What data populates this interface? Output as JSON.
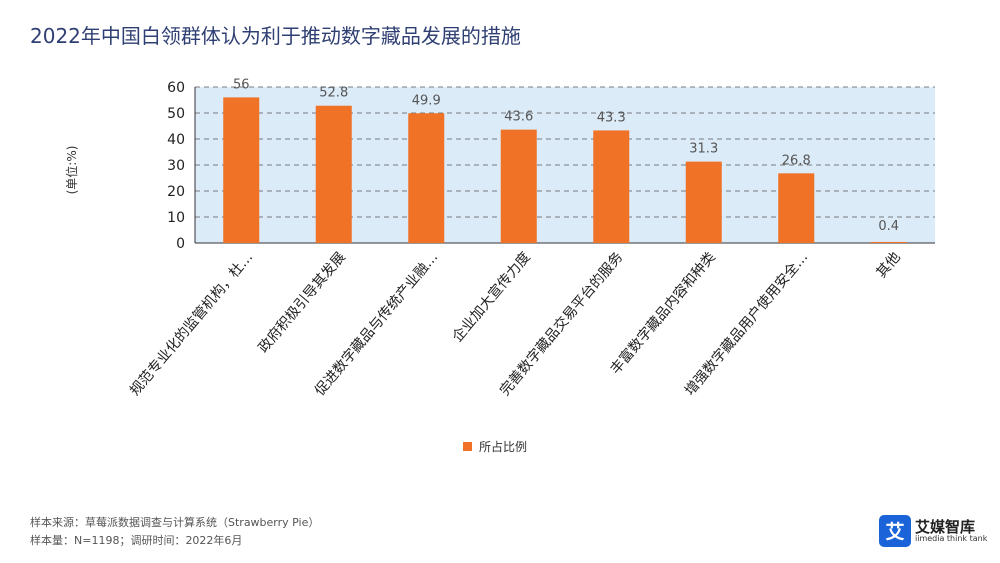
{
  "title": "2022年中国白领群体认为利于推动数字藏品发展的措施",
  "footer": {
    "source": "样本来源：草莓派数据调查与计算系统（Strawberry Pie）",
    "sample": "样本量：N=1198；调研时间：2022年6月"
  },
  "logo": {
    "glyph": "艾",
    "name": "艾媒智库",
    "sub": "iimedia think tank",
    "color": "#1a63d8",
    "icon": "iimedia-logo-icon"
  },
  "colors": {
    "bar": "#f07226",
    "plot_bg": "#dcebf8",
    "grid": "#555555",
    "title": "#2f3f73"
  },
  "chart_data": {
    "type": "bar",
    "title": "",
    "xlabel": "",
    "ylabel": "(单位:%)",
    "ylim": [
      0,
      60
    ],
    "yticks": [
      0,
      10,
      20,
      30,
      40,
      50,
      60
    ],
    "grid": true,
    "legend_position": "bottom",
    "categories": [
      "规范专业化的监管机构，杜…",
      "政府积极引导其发展",
      "促进数字藏品与传统产业融…",
      "企业加大宣传力度",
      "完善数字藏品交易平台的服务",
      "丰富数字藏品内容和种类",
      "增强数字藏品用户使用安全…",
      "其他"
    ],
    "series": [
      {
        "name": "所占比例",
        "values": [
          56,
          52.8,
          49.9,
          43.6,
          43.3,
          31.3,
          26.8,
          0.4
        ]
      }
    ]
  }
}
